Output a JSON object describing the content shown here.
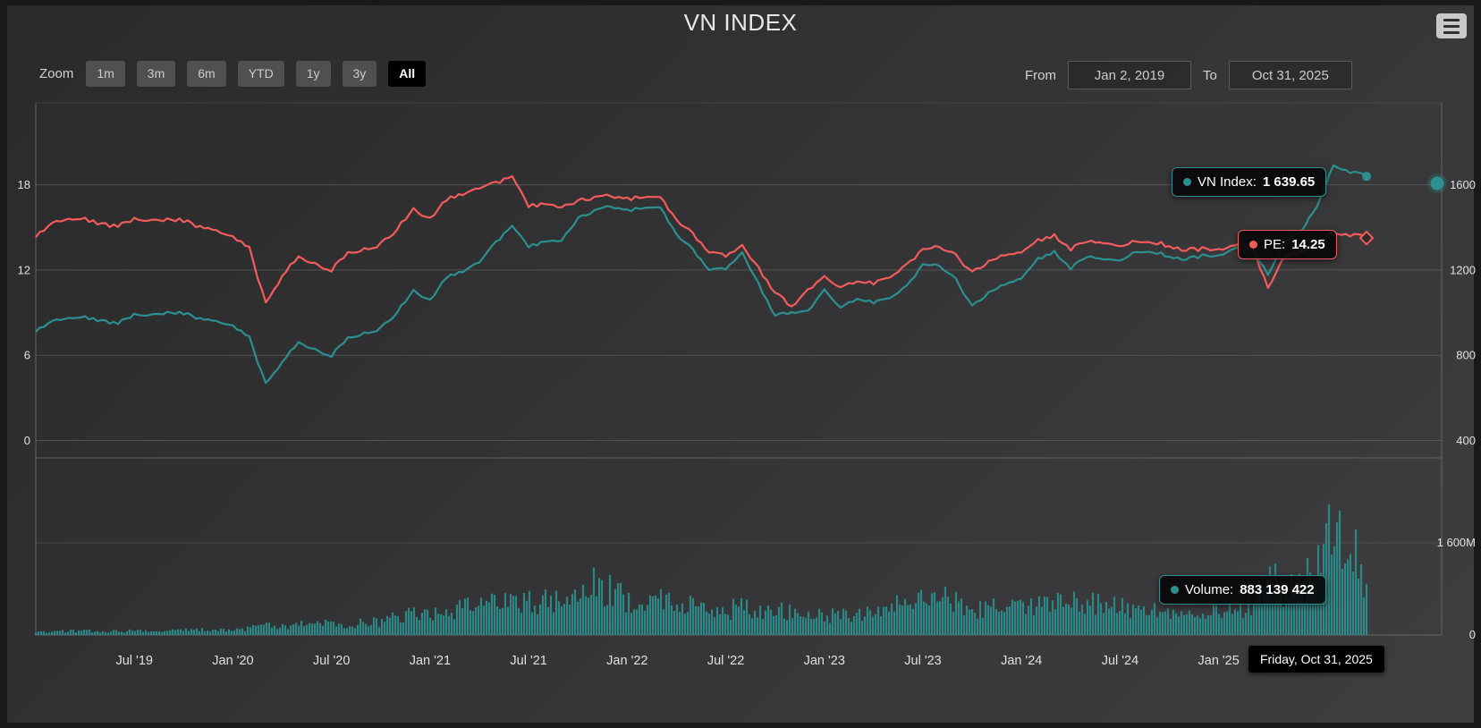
{
  "title": "VN INDEX",
  "colors": {
    "teal": "#2b908f",
    "red": "#f45b5b",
    "background_dark": "#2a2a2b",
    "background_light": "#3e3e40",
    "grid": "#707073",
    "text": "#E0E0E3",
    "button": "#505053",
    "button_selected": "#000000",
    "tooltip_bg": "rgba(0,0,0,0.85)"
  },
  "range_selector": {
    "zoom_label": "Zoom",
    "buttons": [
      "1m",
      "3m",
      "6m",
      "YTD",
      "1y",
      "3y",
      "All"
    ],
    "selected": "All",
    "from_label": "From",
    "from_value": "Jan 2, 2019",
    "to_label": "To",
    "to_value": "Oct 31, 2025"
  },
  "tooltips": {
    "vn_index": {
      "label": "VN Index:",
      "value": "1 639.65"
    },
    "pe": {
      "label": "PE:",
      "value": "14.25"
    },
    "volume": {
      "label": "Volume:",
      "value": "883 139 422"
    },
    "date": "Friday, Oct 31, 2025"
  },
  "chart_data": {
    "type": "line",
    "panes": [
      "price",
      "volume"
    ],
    "x_axis": {
      "start_month": "2019-01",
      "end_month": "2025-10",
      "labels": [
        "Jul '19",
        "Jan '20",
        "Jul '20",
        "Jan '21",
        "Jul '21",
        "Jan '22",
        "Jul '22",
        "Jan '23",
        "Jul '23",
        "Jan '24",
        "Jul '24",
        "Jan '25"
      ],
      "month_indices": [
        6,
        12,
        18,
        24,
        30,
        36,
        42,
        48,
        54,
        60,
        66,
        72
      ]
    },
    "y_axis_left": {
      "name": "PE",
      "tick_labels": [
        "18",
        "12",
        "6",
        "0"
      ],
      "tick_values": [
        18,
        12,
        6,
        0
      ],
      "range": [
        0,
        23.7
      ]
    },
    "y_axis_right": {
      "name": "VN Index",
      "tick_labels": [
        "1600",
        "1200",
        "800",
        "400"
      ],
      "tick_values": [
        1600,
        1200,
        800,
        400
      ],
      "range": [
        400,
        1980
      ]
    },
    "y_axis_volume": {
      "name": "Volume",
      "tick_labels": [
        "1 600M",
        "0"
      ],
      "tick_values": [
        1600,
        0
      ],
      "unit": "millions",
      "range": [
        0,
        2850
      ]
    },
    "series": [
      {
        "name": "VN Index",
        "color": "#2b908f",
        "axis": "right",
        "last_value": 1639.65,
        "values": [
          910,
          965,
          980,
          979,
          960,
          950,
          991,
          984,
          997,
          998,
          970,
          961,
          936,
          882,
          663,
          769,
          864,
          825,
          798,
          881,
          905,
          925,
          1003,
          1104,
          1057,
          1168,
          1191,
          1239,
          1328,
          1408,
          1310,
          1331,
          1342,
          1444,
          1478,
          1498,
          1479,
          1490,
          1492,
          1366,
          1293,
          1198,
          1206,
          1280,
          1132,
          985,
          1000,
          1007,
          1111,
          1024,
          1065,
          1049,
          1075,
          1120,
          1223,
          1224,
          1154,
          1028,
          1094,
          1130,
          1164,
          1252,
          1284,
          1209,
          1262,
          1245,
          1246,
          1284,
          1288,
          1264,
          1250,
          1267,
          1265,
          1305,
          1307,
          1180,
          1332,
          1376,
          1502,
          1695,
          1662,
          1639.65
        ]
      },
      {
        "name": "PE",
        "color": "#f45b5b",
        "axis": "left",
        "last_value": 14.25,
        "values": [
          14.3,
          15.4,
          15.7,
          15.6,
          15.2,
          15.1,
          15.6,
          15.4,
          15.5,
          15.5,
          15.0,
          14.8,
          14.3,
          13.5,
          9.6,
          11.6,
          13.0,
          12.4,
          12.0,
          13.2,
          13.5,
          13.8,
          14.9,
          16.3,
          15.6,
          17.0,
          17.3,
          17.8,
          18.1,
          18.6,
          16.5,
          16.6,
          16.5,
          16.9,
          17.1,
          17.2,
          17.0,
          17.1,
          17.1,
          15.5,
          14.5,
          13.2,
          13.0,
          13.7,
          12.1,
          10.4,
          9.4,
          10.6,
          11.6,
          10.8,
          11.2,
          11.1,
          11.6,
          12.3,
          13.4,
          13.7,
          13.0,
          11.8,
          12.6,
          13.0,
          13.3,
          14.1,
          14.4,
          13.5,
          14.0,
          13.8,
          13.7,
          14.0,
          14.0,
          13.7,
          13.4,
          13.5,
          13.4,
          13.8,
          13.7,
          10.8,
          12.9,
          13.2,
          14.0,
          14.7,
          14.5,
          14.25
        ]
      },
      {
        "name": "Volume",
        "color": "#2b908f",
        "axis": "volume",
        "unit": "millions",
        "last_value": 883.139422,
        "values": [
          55,
          60,
          70,
          72,
          64,
          68,
          78,
          74,
          80,
          86,
          92,
          88,
          96,
          112,
          165,
          158,
          185,
          225,
          172,
          192,
          212,
          235,
          330,
          390,
          355,
          385,
          450,
          520,
          580,
          700,
          560,
          620,
          640,
          650,
          850,
          800,
          620,
          560,
          620,
          560,
          500,
          440,
          420,
          480,
          460,
          400,
          440,
          470,
          325,
          365,
          385,
          425,
          485,
          565,
          625,
          645,
          585,
          465,
          445,
          485,
          445,
          525,
          605,
          565,
          545,
          525,
          485,
          445,
          425,
          405,
          385,
          425,
          385,
          430,
          520,
          1100,
          750,
          850,
          1150,
          1950,
          1650,
          883.14
        ]
      }
    ]
  }
}
